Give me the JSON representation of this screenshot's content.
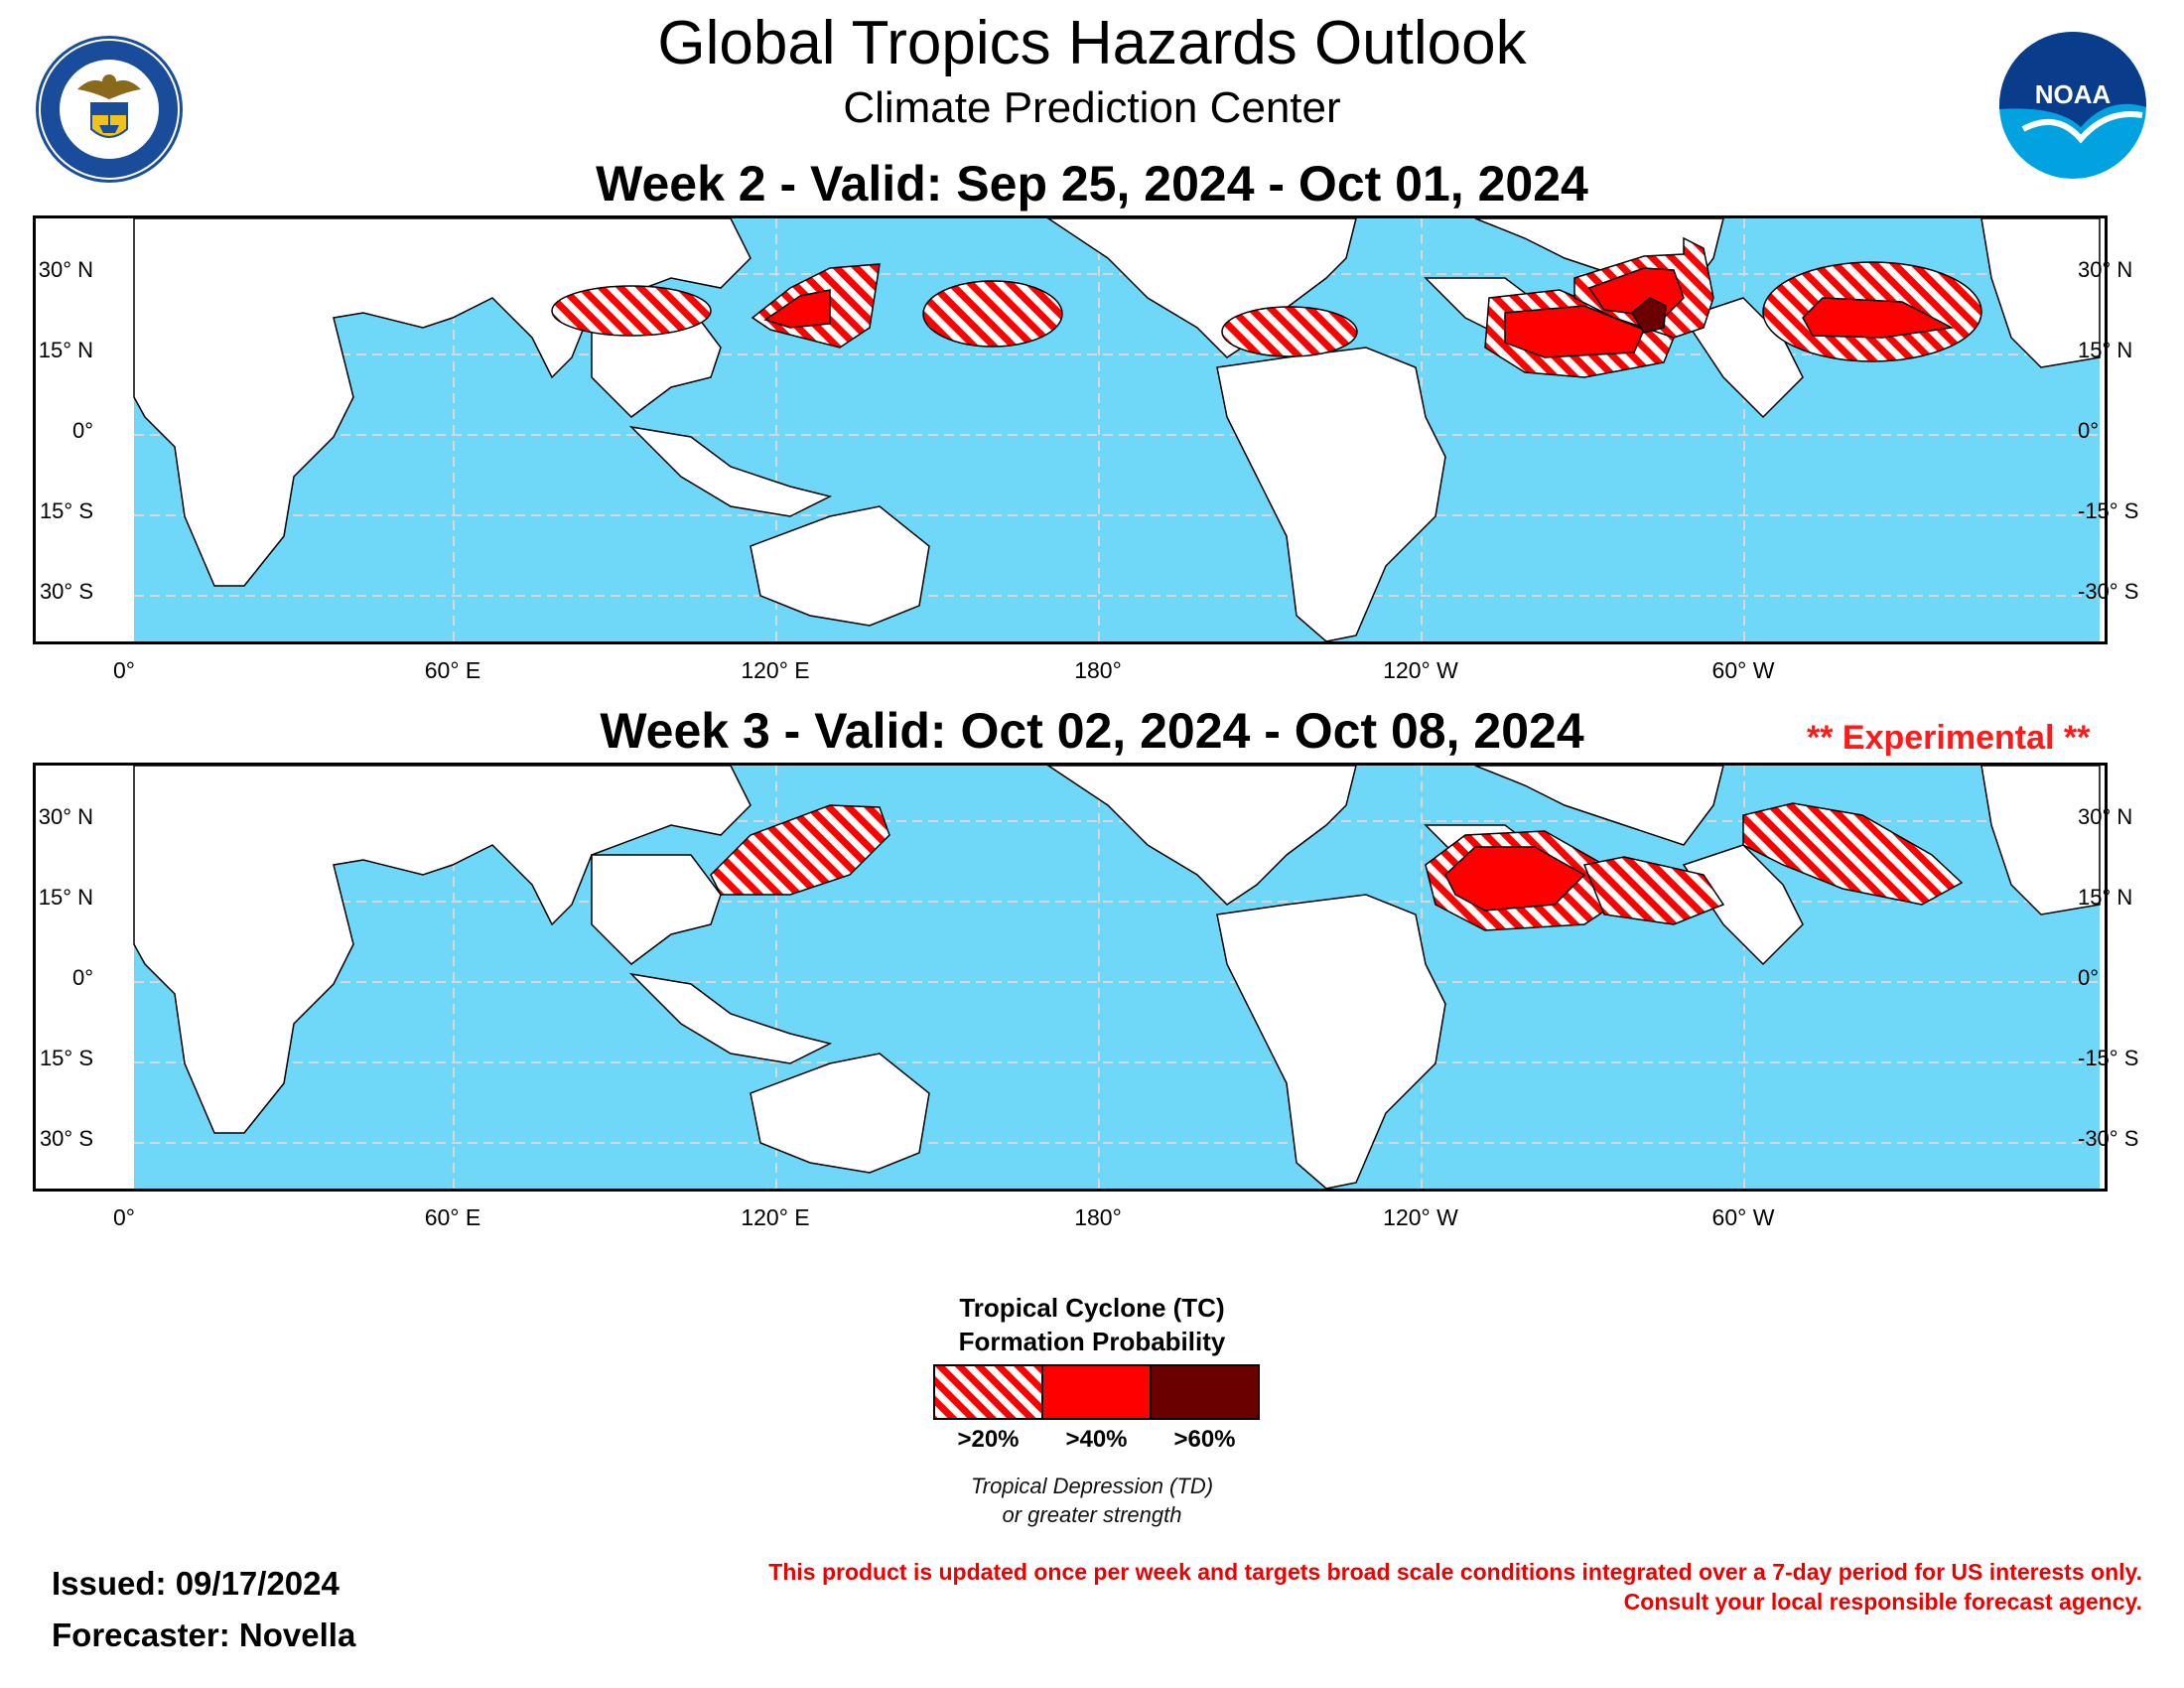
{
  "header": {
    "title": "Global Tropics Hazards Outlook",
    "subtitle": "Climate Prediction Center",
    "left_logo": "department-of-commerce-seal",
    "left_logo_text": "DEPARTMENT OF COMMERCE · UNITED STATES OF AMERICA",
    "right_logo": "noaa-logo",
    "right_logo_text": "NOAA"
  },
  "maps": [
    {
      "title": "Week 2 - Valid: Sep 25, 2024 - Oct 01, 2024",
      "experimental": "",
      "lat_labels_left": [
        "30° N",
        "15° N",
        "0°",
        "15° S",
        "30° S"
      ],
      "lat_labels_right": [
        "30° N",
        "15° N",
        "0°",
        "-15° S",
        "-30° S"
      ],
      "lon_labels": [
        "0°",
        "60° E",
        "120° E",
        "180°",
        "120° W",
        "60° W"
      ],
      "hazard_areas": [
        {
          "region": "Bay of Bengal",
          "category": ">20%"
        },
        {
          "region": "South China Sea / Philippine Sea",
          "category": ">20%"
        },
        {
          "region": "South China Sea",
          "category": ">40%"
        },
        {
          "region": "Western North Pacific (east of Philippines)",
          "category": ">20%"
        },
        {
          "region": "Central North Pacific",
          "category": ">20%"
        },
        {
          "region": "Eastern North Pacific",
          "category": ">20%"
        },
        {
          "region": "Eastern North Pacific",
          "category": ">40%"
        },
        {
          "region": "Gulf of Mexico / Western Caribbean",
          "category": ">20%"
        },
        {
          "region": "Gulf of Mexico / Western Caribbean",
          "category": ">40%"
        },
        {
          "region": "Western Caribbean / Yucatan",
          "category": ">60%"
        },
        {
          "region": "Main Development Region (Atlantic)",
          "category": ">20%"
        },
        {
          "region": "Main Development Region (Atlantic)",
          "category": ">40%"
        }
      ]
    },
    {
      "title": "Week 3 - Valid: Oct 02, 2024 - Oct 08, 2024",
      "experimental": "** Experimental **",
      "lat_labels_left": [
        "30° N",
        "15° N",
        "0°",
        "15° S",
        "30° S"
      ],
      "lat_labels_right": [
        "30° N",
        "15° N",
        "0°",
        "-15° S",
        "-30° S"
      ],
      "lon_labels": [
        "0°",
        "60° E",
        "120° E",
        "180°",
        "120° W",
        "60° W"
      ],
      "hazard_areas": [
        {
          "region": "South China Sea / Philippine Sea",
          "category": ">20%"
        },
        {
          "region": "Eastern North Pacific",
          "category": ">20%"
        },
        {
          "region": "Eastern North Pacific",
          "category": ">40%"
        },
        {
          "region": "Western Caribbean",
          "category": ">20%"
        },
        {
          "region": "Main Development Region (Atlantic)",
          "category": ">20%"
        }
      ]
    }
  ],
  "legend": {
    "title_line1": "Tropical Cyclone (TC)",
    "title_line2": "Formation Probability",
    "items": [
      {
        "label": ">20%",
        "color": "#ff0000",
        "pattern": "hatched"
      },
      {
        "label": ">40%",
        "color": "#ff0000",
        "pattern": "solid"
      },
      {
        "label": ">60%",
        "color": "#6b0000",
        "pattern": "solid"
      }
    ],
    "note_line1": "Tropical Depression (TD)",
    "note_line2": "or greater strength"
  },
  "footer": {
    "issued": "Issued: 09/17/2024",
    "forecaster": "Forecaster: Novella",
    "disclaimer_line1": "This product is updated once per week and targets broad scale conditions integrated over a 7-day period for US interests only.",
    "disclaimer_line2": "Consult your local responsible forecast agency."
  },
  "colors": {
    "ocean": "#6fd8f8",
    "land": "#ffffff",
    "hazard_red": "#ff0000",
    "hazard_dark": "#6b0000",
    "experimental": "#ff1a1a"
  }
}
